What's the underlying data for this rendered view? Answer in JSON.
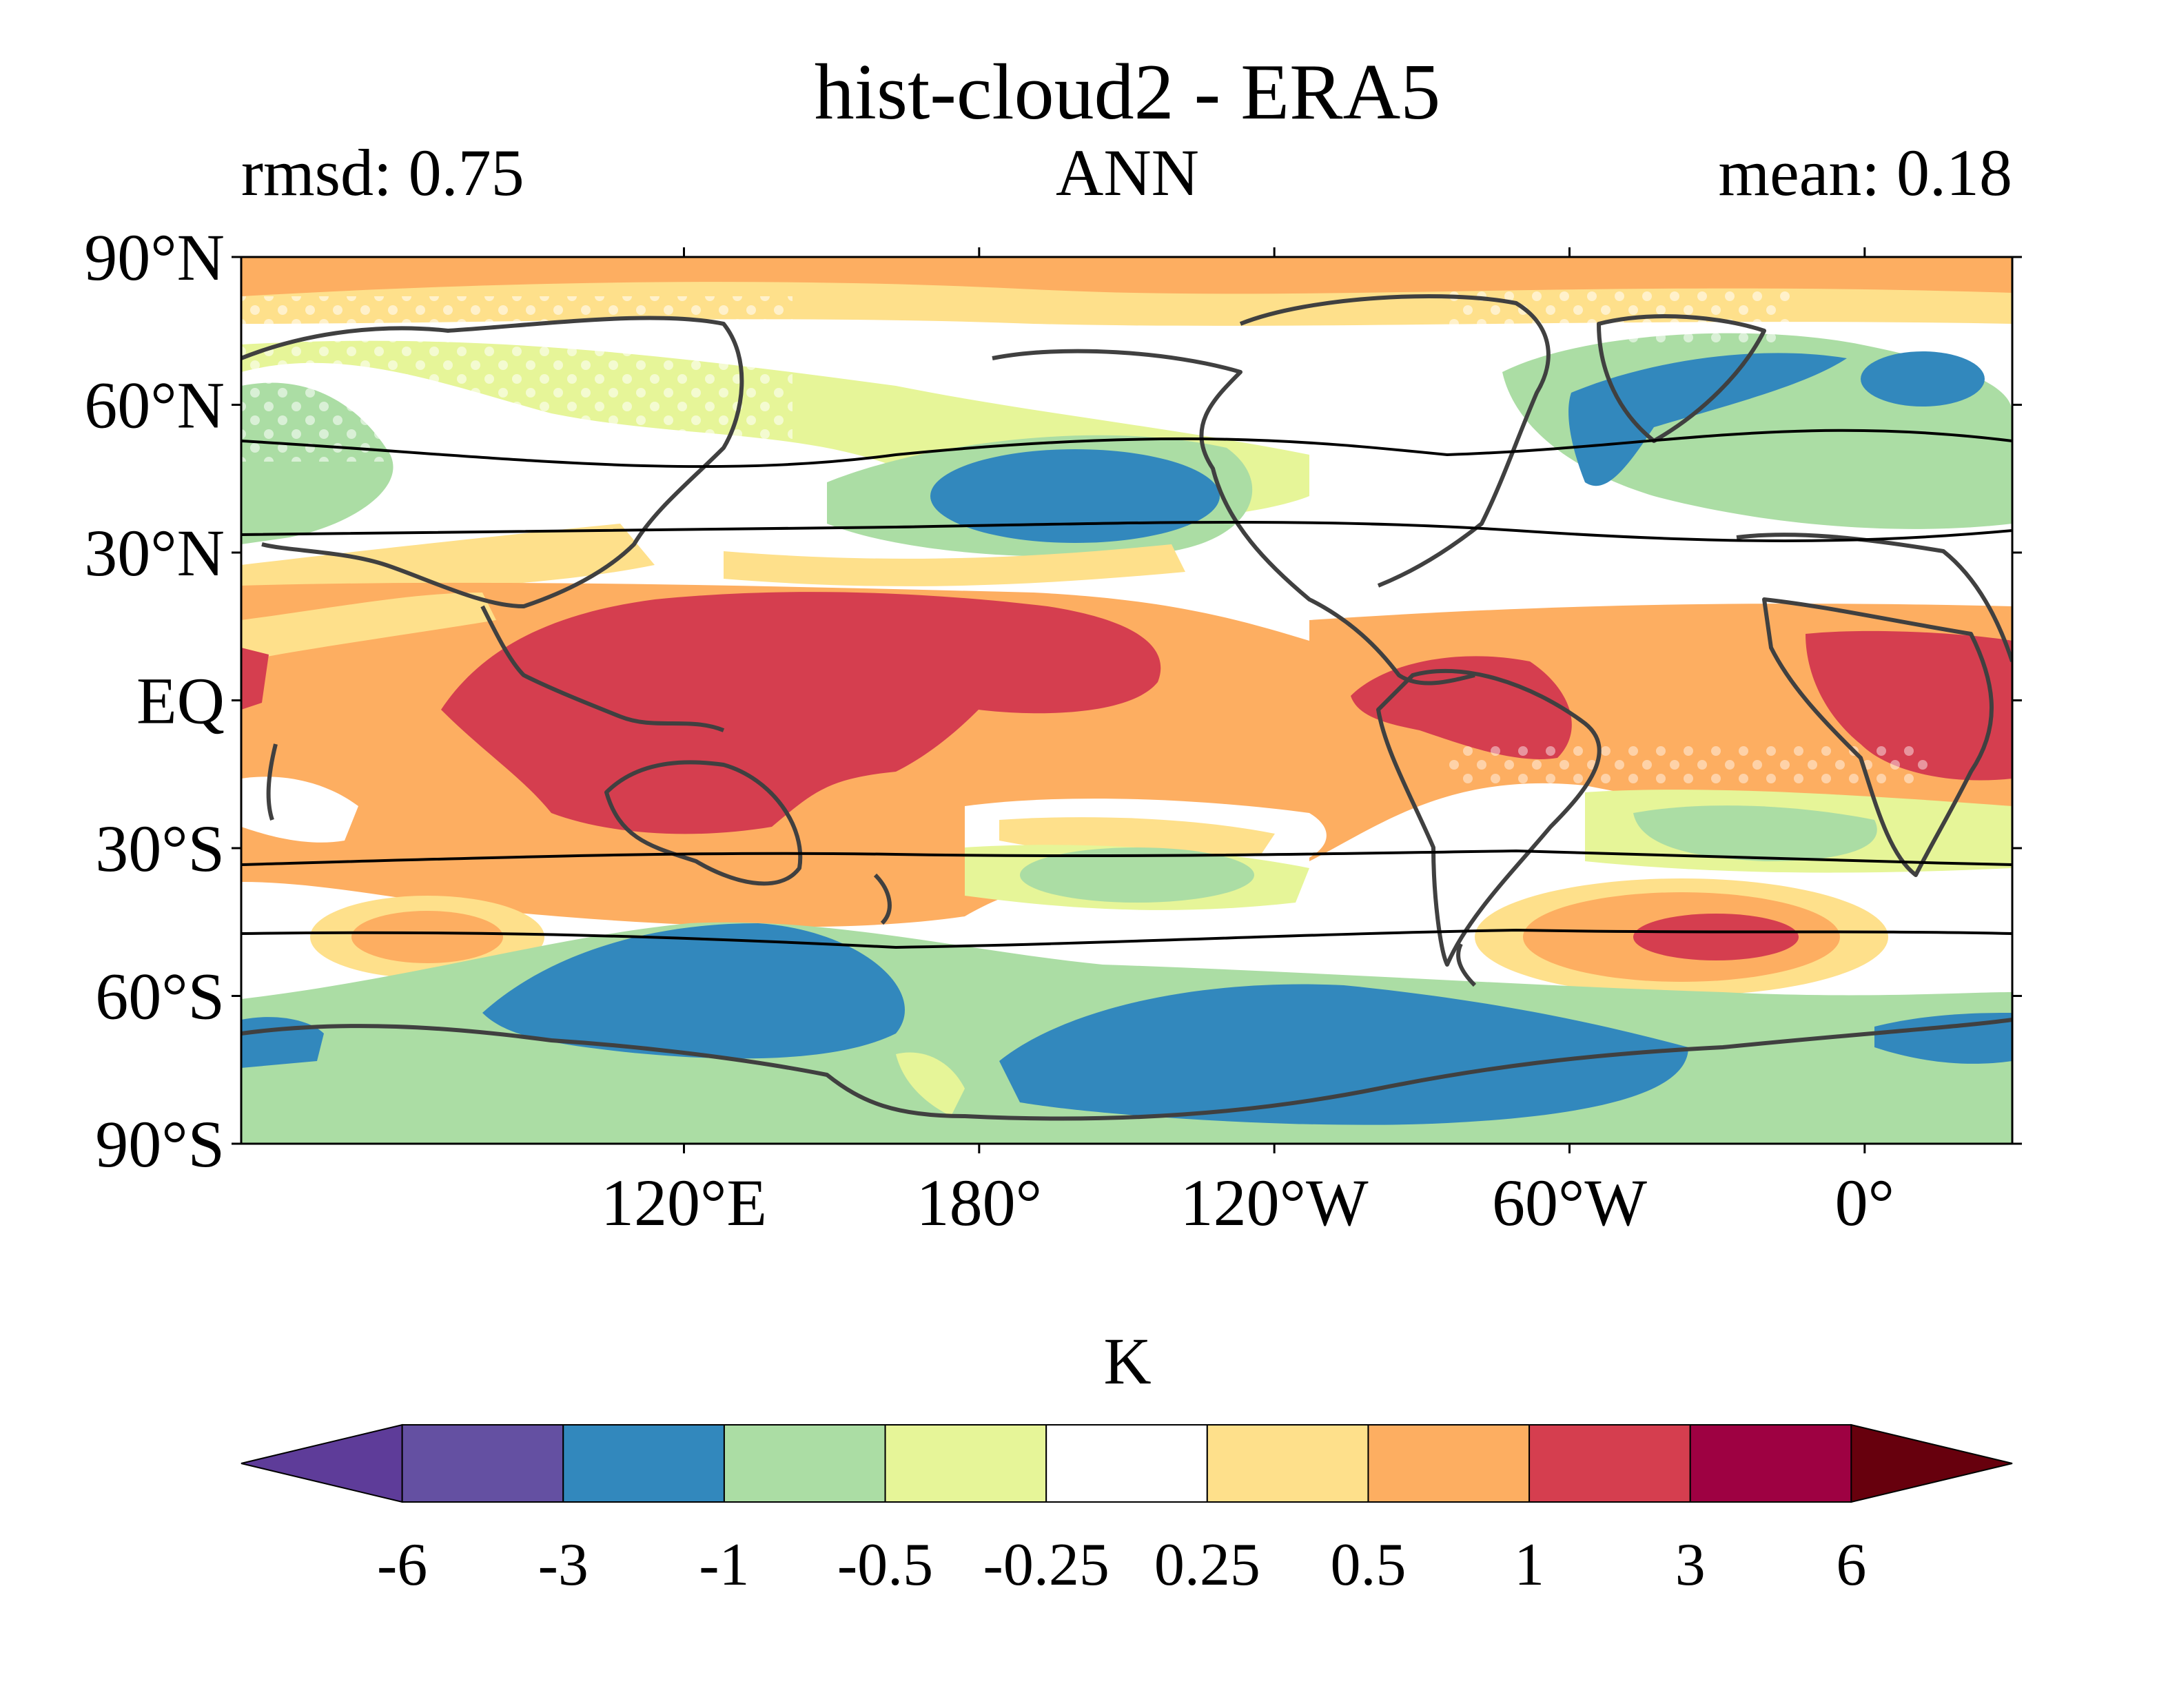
{
  "figure": {
    "title": "hist-cloud2 - ERA5",
    "stat_left": "rmsd: 0.75",
    "season": "ANN",
    "stat_right": "mean: 0.18"
  },
  "map": {
    "projection": "PlateCarree",
    "central_longitude": -150,
    "lat_range": [
      -90,
      90
    ],
    "lon_range": [
      -330,
      30
    ],
    "lat_ticks": [
      {
        "value": 90,
        "label": "90°N"
      },
      {
        "value": 60,
        "label": "60°N"
      },
      {
        "value": 30,
        "label": "30°N"
      },
      {
        "value": 0,
        "label": "EQ"
      },
      {
        "value": -30,
        "label": "30°S"
      },
      {
        "value": -60,
        "label": "60°S"
      },
      {
        "value": -90,
        "label": "90°S"
      }
    ],
    "lon_ticks": [
      {
        "value": -240,
        "label": "120°E"
      },
      {
        "value": -180,
        "label": "180°"
      },
      {
        "value": -120,
        "label": "120°W"
      },
      {
        "value": -60,
        "label": "60°W"
      },
      {
        "value": 0,
        "label": "0°"
      }
    ],
    "coastline_color": "#404040",
    "jet_line_color": "#000000",
    "stipple_color": "#ffffff"
  },
  "colorbar": {
    "unit_label": "K",
    "tick_labels": [
      "-6",
      "-3",
      "-1",
      "-0.5",
      "-0.25",
      "0.25",
      "0.5",
      "1",
      "3",
      "6"
    ],
    "under_color": "#5e3c99",
    "over_color": "#67000d",
    "colors": [
      "#6450a2",
      "#3288bd",
      "#abdda4",
      "#e6f598",
      "#ffffff",
      "#fee08b",
      "#fdae61",
      "#d53e4f",
      "#9e0142"
    ]
  }
}
